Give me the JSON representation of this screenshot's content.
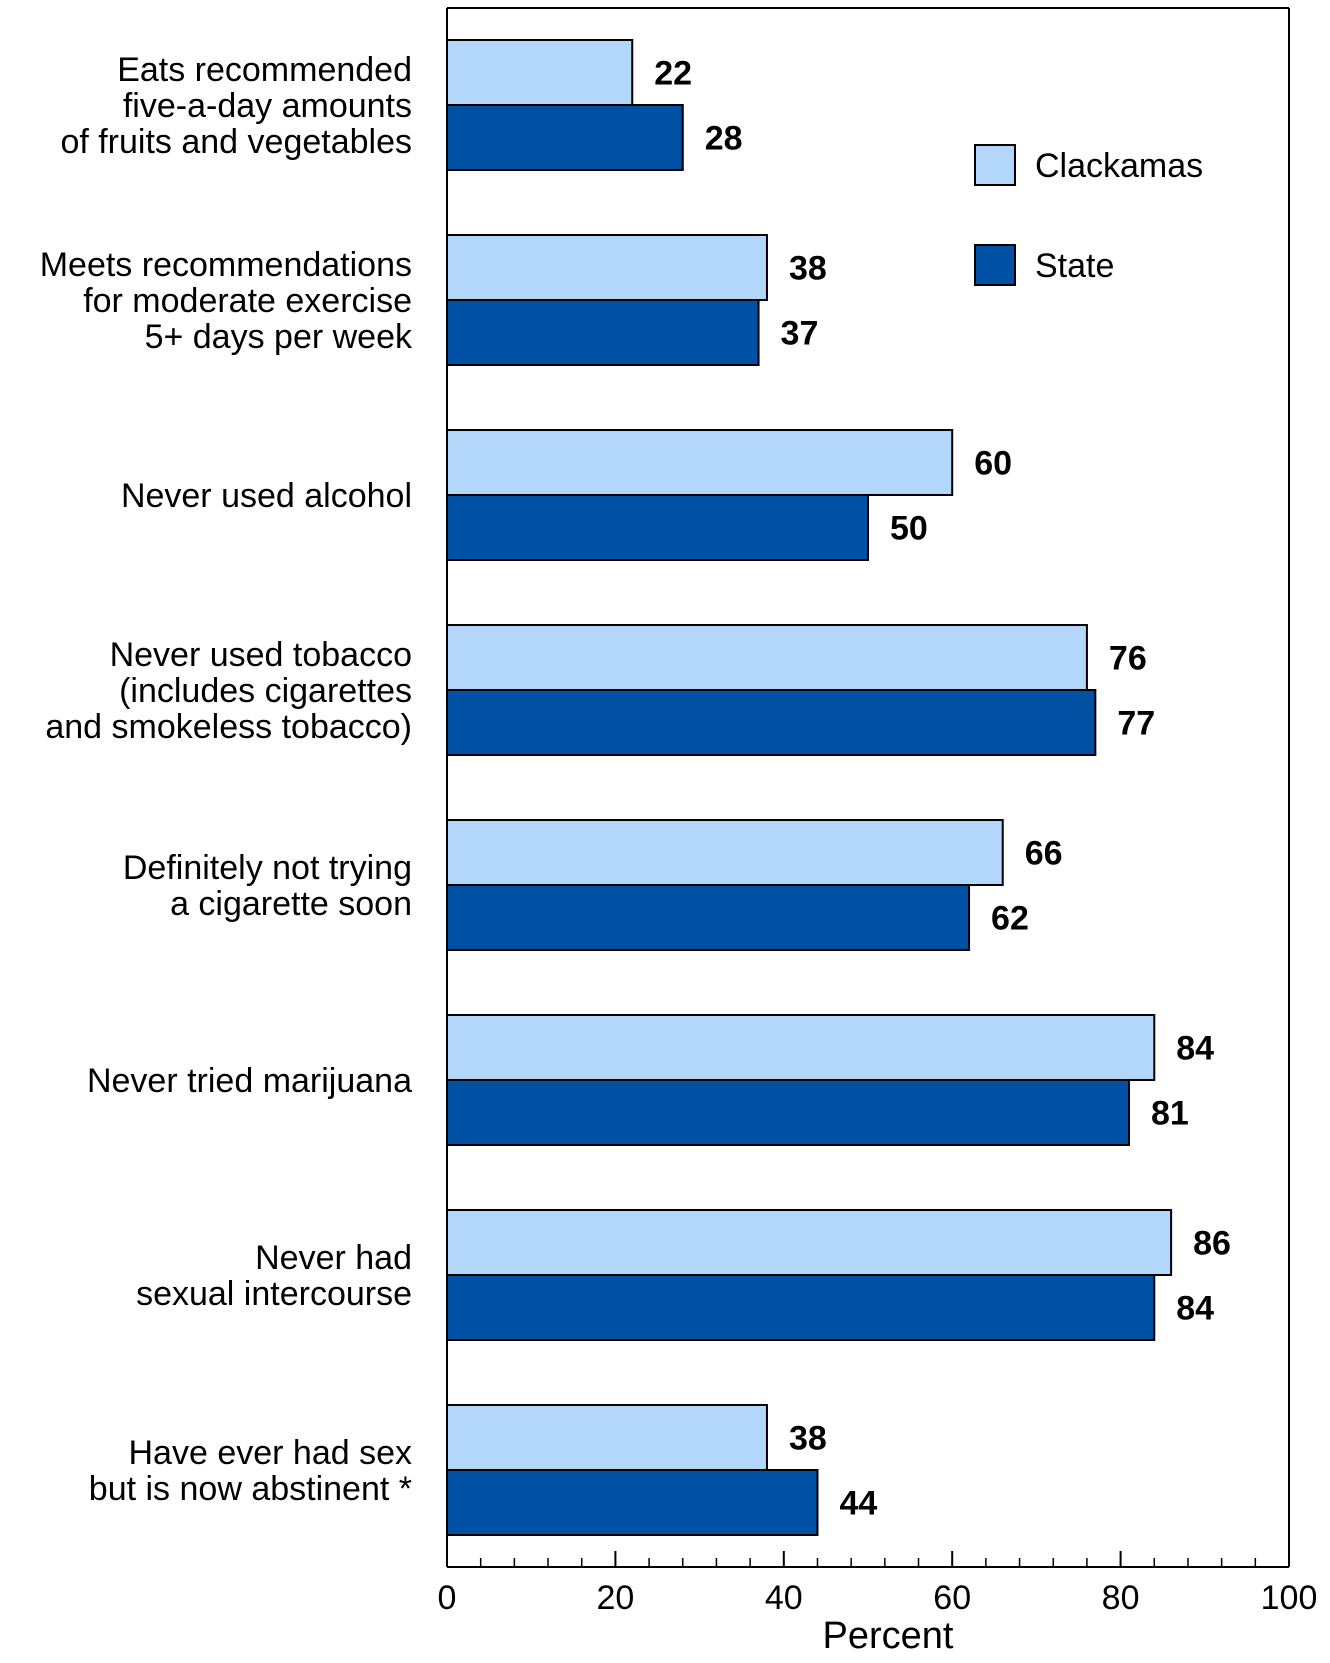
{
  "chart_data": {
    "type": "bar",
    "orientation": "horizontal",
    "categories": [
      [
        "Eats recommended",
        "five-a-day amounts",
        "of fruits and vegetables"
      ],
      [
        "Meets recommendations",
        "for moderate exercise",
        "5+ days per week"
      ],
      [
        "Never used alcohol"
      ],
      [
        "Never used tobacco",
        "(includes cigarettes",
        "and smokeless tobacco)"
      ],
      [
        "Definitely not trying",
        "a cigarette soon"
      ],
      [
        "Never tried marijuana"
      ],
      [
        "Never had",
        "sexual intercourse"
      ],
      [
        "Have ever had sex",
        "but is now abstinent *"
      ]
    ],
    "series": [
      {
        "name": "Clackamas",
        "color": "#b3d7fb",
        "values": [
          22,
          38,
          60,
          76,
          66,
          84,
          86,
          38
        ]
      },
      {
        "name": "State",
        "color": "#0050a4",
        "values": [
          28,
          37,
          50,
          77,
          62,
          81,
          84,
          44
        ]
      }
    ],
    "xlabel": "Percent",
    "xlim": [
      0,
      100
    ],
    "xticks": [
      0,
      20,
      40,
      60,
      80,
      100
    ],
    "minor_tick_step": 4,
    "data_labels": true,
    "legend_position": "top-right",
    "grid": false
  }
}
